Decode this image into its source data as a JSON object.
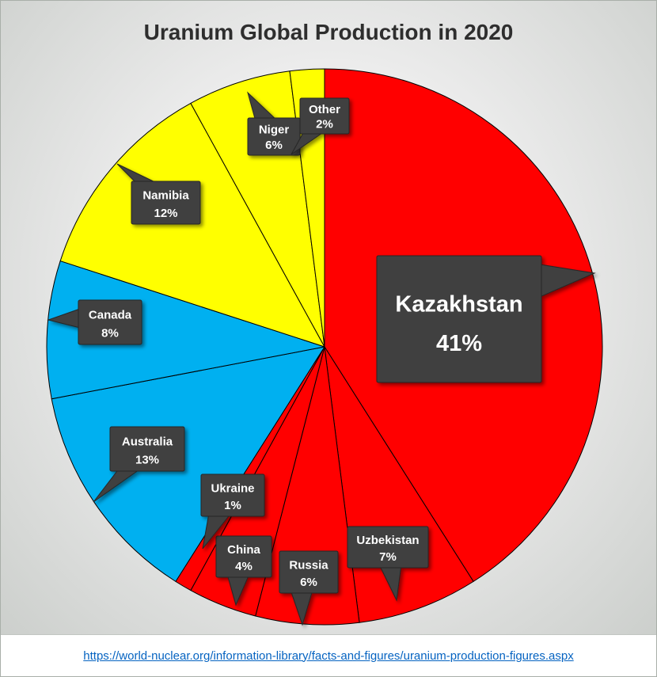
{
  "title": "Uranium Global Production in 2020",
  "source_link": "https://world-nuclear.org/information-library/facts-and-figures/uranium-production-figures.aspx",
  "chart_data": {
    "type": "pie",
    "title": "Uranium Global Production in 2020",
    "start_angle_deg": -90,
    "direction": "clockwise",
    "legend": "none",
    "callout_style": {
      "bg": "#3f3f3f",
      "border": "#262626",
      "text": "#ffffff"
    },
    "slices": [
      {
        "label": "Kazakhstan",
        "value": 41,
        "percent": "41%",
        "color": "#ff0000"
      },
      {
        "label": "Uzbekistan",
        "value": 7,
        "percent": "7%",
        "color": "#ff0000"
      },
      {
        "label": "Russia",
        "value": 6,
        "percent": "6%",
        "color": "#ff0000"
      },
      {
        "label": "China",
        "value": 4,
        "percent": "4%",
        "color": "#ff0000"
      },
      {
        "label": "Ukraine",
        "value": 1,
        "percent": "1%",
        "color": "#ff0000"
      },
      {
        "label": "Australia",
        "value": 13,
        "percent": "13%",
        "color": "#00b0f0"
      },
      {
        "label": "Canada",
        "value": 8,
        "percent": "8%",
        "color": "#00b0f0"
      },
      {
        "label": "Namibia",
        "value": 12,
        "percent": "12%",
        "color": "#ffff00"
      },
      {
        "label": "Niger",
        "value": 6,
        "percent": "6%",
        "color": "#ffff00"
      },
      {
        "label": "Other",
        "value": 2,
        "percent": "2%",
        "color": "#ffff00"
      }
    ]
  }
}
